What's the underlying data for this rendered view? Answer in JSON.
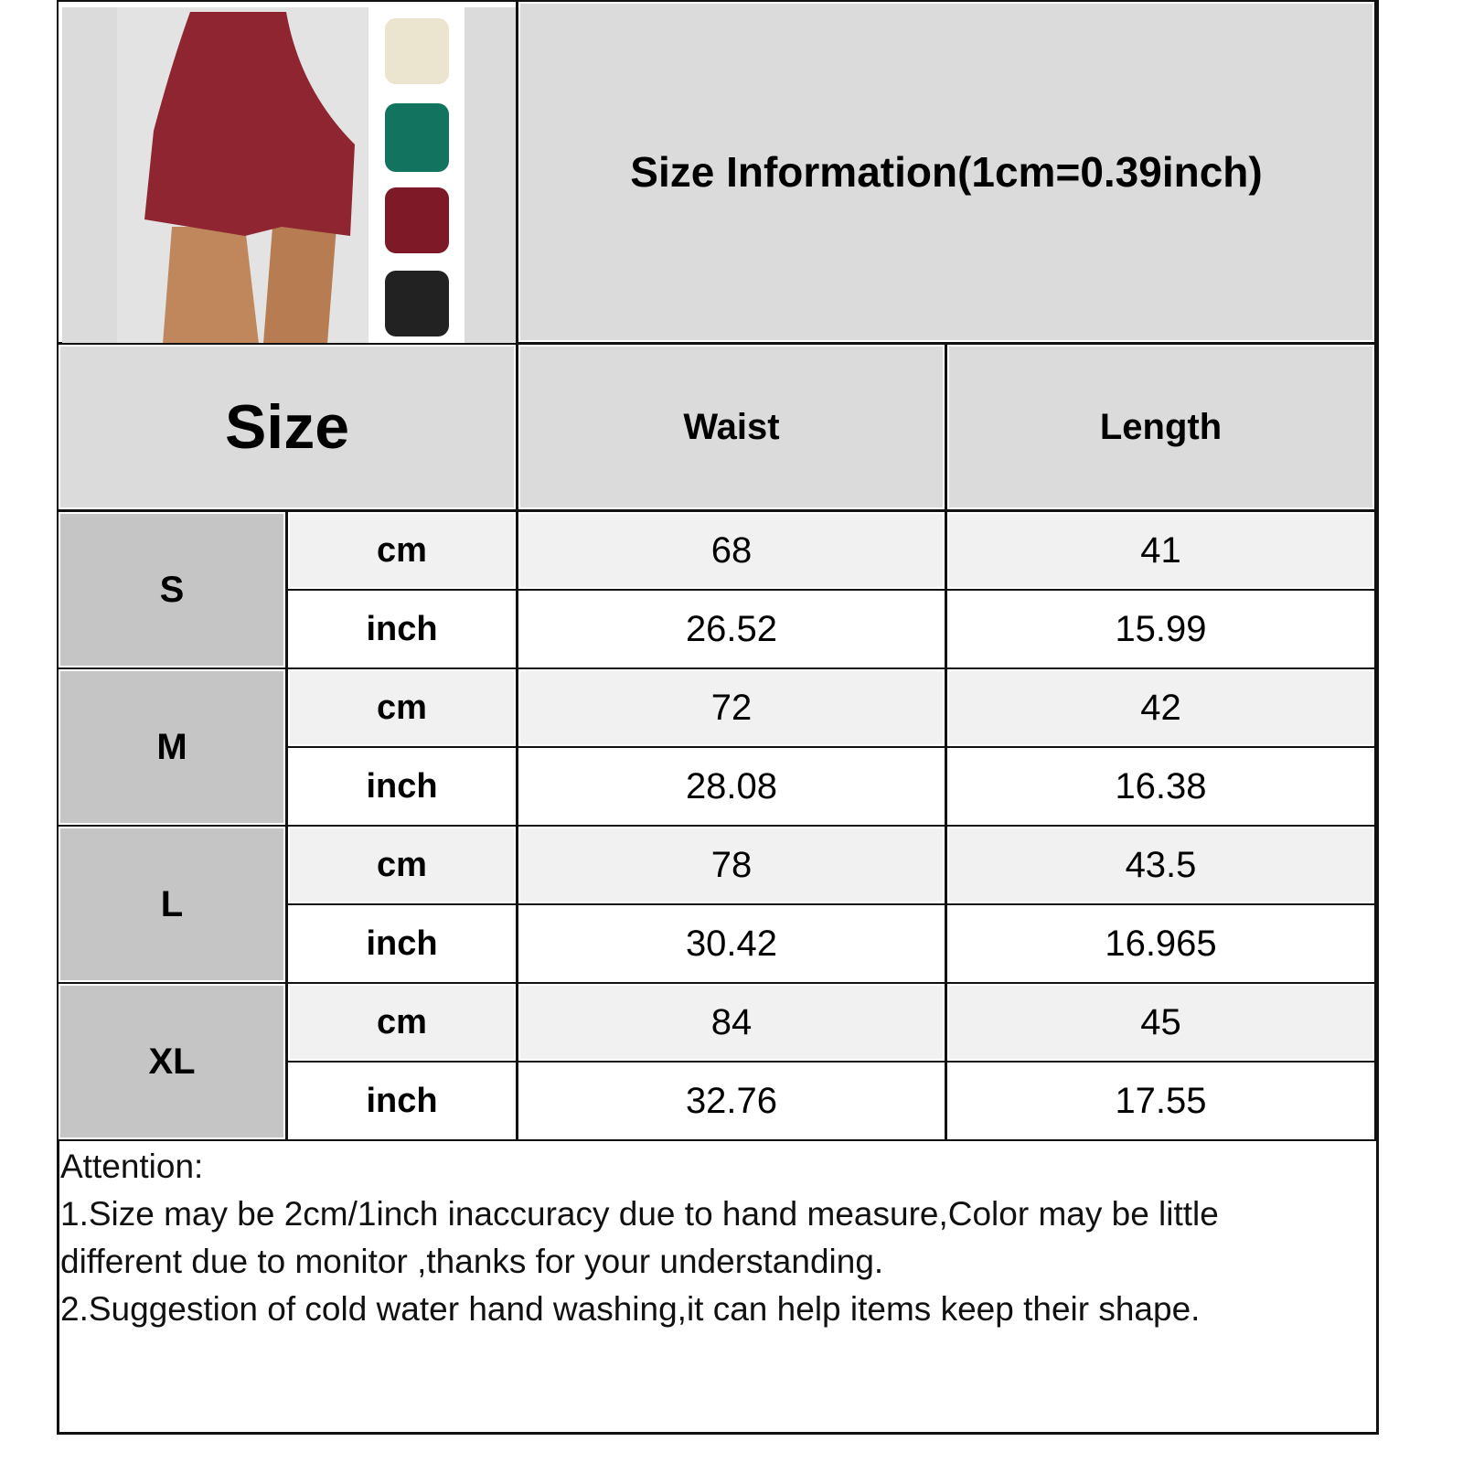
{
  "title": "Size Information(1cm=0.39inch)",
  "header": {
    "size": "Size",
    "waist": "Waist",
    "length": "Length"
  },
  "product_colors": [
    "#8e2530",
    "#ebe4cf",
    "#12735f",
    "#7e1a28",
    "#222222"
  ],
  "sizes": [
    {
      "label": "S",
      "cm": {
        "unit": "cm",
        "waist": "68",
        "length": "41"
      },
      "inch": {
        "unit": "inch",
        "waist": "26.52",
        "length": "15.99"
      }
    },
    {
      "label": "M",
      "cm": {
        "unit": "cm",
        "waist": "72",
        "length": "42"
      },
      "inch": {
        "unit": "inch",
        "waist": "28.08",
        "length": "16.38"
      }
    },
    {
      "label": "L",
      "cm": {
        "unit": "cm",
        "waist": "78",
        "length": "43.5"
      },
      "inch": {
        "unit": "inch",
        "waist": "30.42",
        "length": "16.965"
      }
    },
    {
      "label": "XL",
      "cm": {
        "unit": "cm",
        "waist": "84",
        "length": "45"
      },
      "inch": {
        "unit": "inch",
        "waist": "32.76",
        "length": "17.55"
      }
    }
  ],
  "attention": {
    "heading": "Attention:",
    "lines": [
      "1.Size may be 2cm/1inch inaccuracy due to hand measure,Color may be little",
      "different due to monitor ,thanks for your understanding.",
      "2.Suggestion of cold water hand washing,it can help items keep their shape."
    ]
  }
}
